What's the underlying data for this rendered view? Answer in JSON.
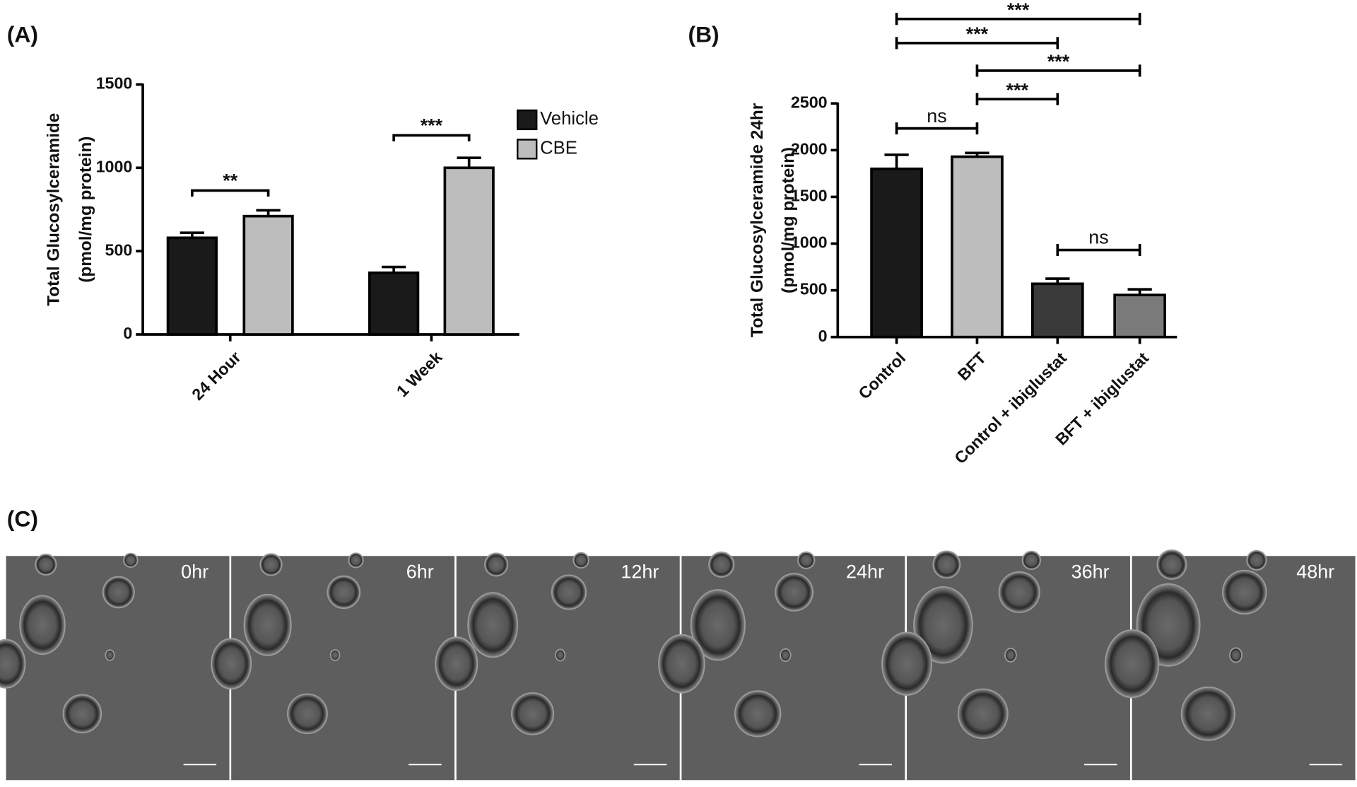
{
  "chart_data": [
    {
      "type": "bar",
      "panel_label": "(A)",
      "ylabel": [
        "Total Glucosylceramide",
        "(pmol/mg protein)"
      ],
      "categories": [
        "24 Hour",
        "1 Week"
      ],
      "series": [
        {
          "name": "Vehicle",
          "color": "#1a1a1a",
          "values": [
            580,
            370
          ],
          "errors": [
            30,
            35
          ]
        },
        {
          "name": "CBE",
          "color": "#bdbdbd",
          "values": [
            710,
            1000
          ],
          "errors": [
            35,
            60
          ]
        }
      ],
      "ylim": [
        0,
        1500
      ],
      "yticks": [
        0,
        500,
        1000,
        1500
      ],
      "annotations": [
        {
          "text": "**",
          "category": "24 Hour"
        },
        {
          "text": "***",
          "category": "1 Week"
        }
      ]
    },
    {
      "type": "bar",
      "panel_label": "(B)",
      "ylabel": [
        "Total Glucosylceramide 24hr",
        "(pmol/mg protein)"
      ],
      "categories": [
        "Control",
        "BFT",
        "Control + ibiglustat",
        "BFT + ibiglustat"
      ],
      "values": [
        1800,
        1930,
        570,
        450
      ],
      "errors": [
        150,
        40,
        55,
        60
      ],
      "colors": [
        "#1a1a1a",
        "#bdbdbd",
        "#3a3a3a",
        "#7a7a7a"
      ],
      "ylim": [
        0,
        2500
      ],
      "yticks": [
        0,
        500,
        1000,
        1500,
        2000,
        2500
      ],
      "annotations": [
        {
          "text": "***",
          "from": "Control",
          "to": "BFT + ibiglustat"
        },
        {
          "text": "***",
          "from": "Control",
          "to": "Control + ibiglustat"
        },
        {
          "text": "***",
          "from": "BFT",
          "to": "BFT + ibiglustat"
        },
        {
          "text": "***",
          "from": "BFT",
          "to": "Control + ibiglustat"
        },
        {
          "text": "ns",
          "from": "Control",
          "to": "BFT"
        },
        {
          "text": "ns",
          "from": "Control + ibiglustat",
          "to": "BFT + ibiglustat"
        }
      ]
    }
  ],
  "panel_c": {
    "panel_label": "(C)",
    "frames": [
      "0hr",
      "6hr",
      "12hr",
      "24hr",
      "36hr",
      "48hr"
    ]
  }
}
